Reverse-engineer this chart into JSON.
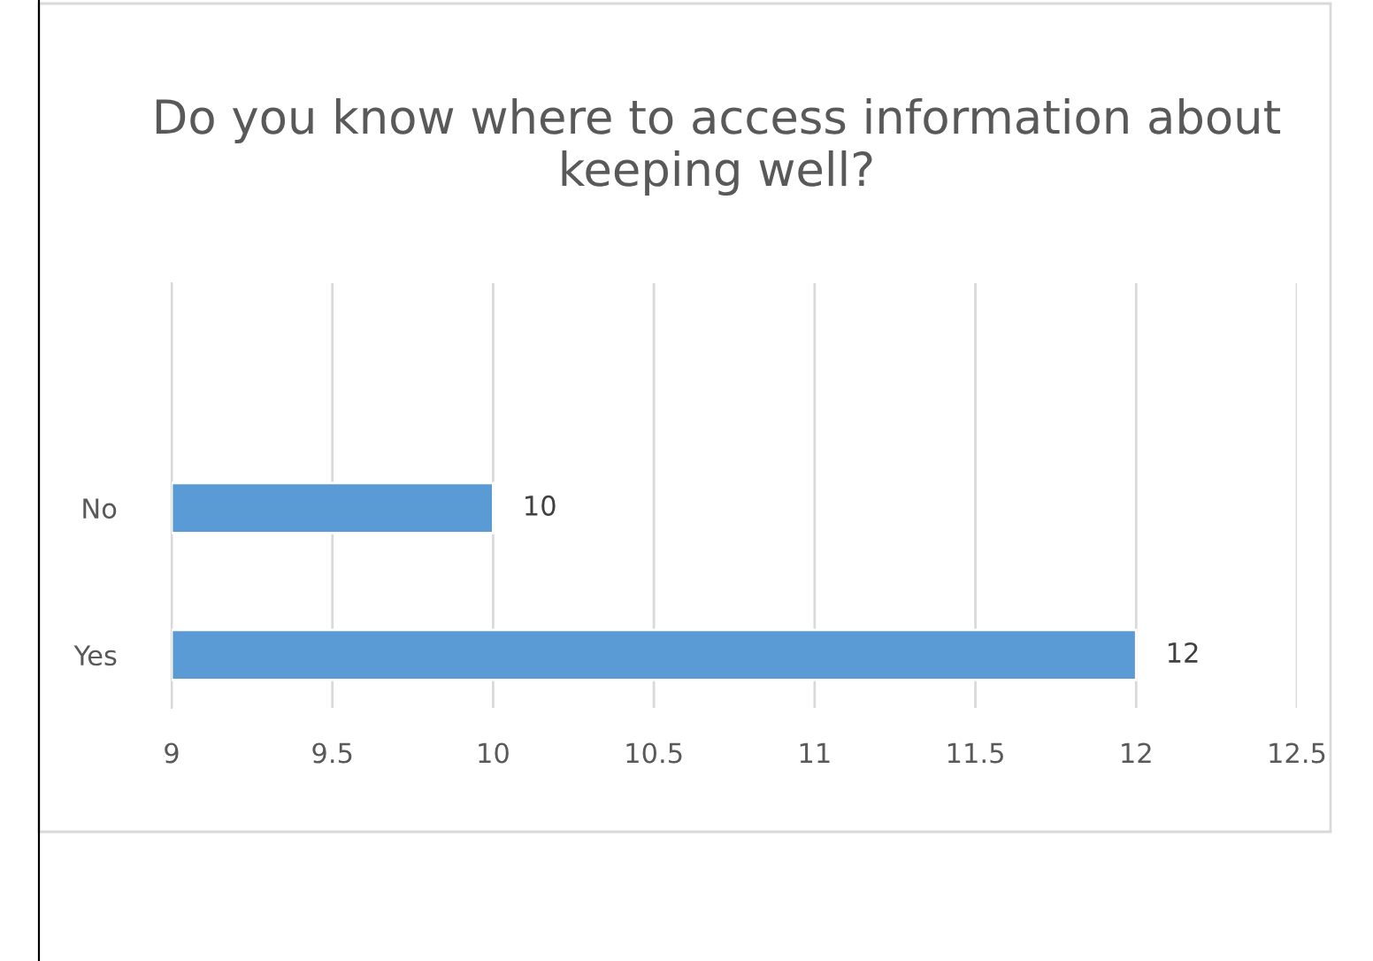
{
  "chart_data": {
    "type": "bar",
    "orientation": "horizontal",
    "title": "Do you know where to access information about keeping well?",
    "categories": [
      "No",
      "Yes"
    ],
    "values": [
      10,
      12
    ],
    "color": "#5b9bd5",
    "xlim": [
      9,
      12.5
    ],
    "xticks": [
      9,
      9.5,
      10,
      10.5,
      11,
      11.5,
      12,
      12.5
    ],
    "grid": "x",
    "data_labels": true
  }
}
